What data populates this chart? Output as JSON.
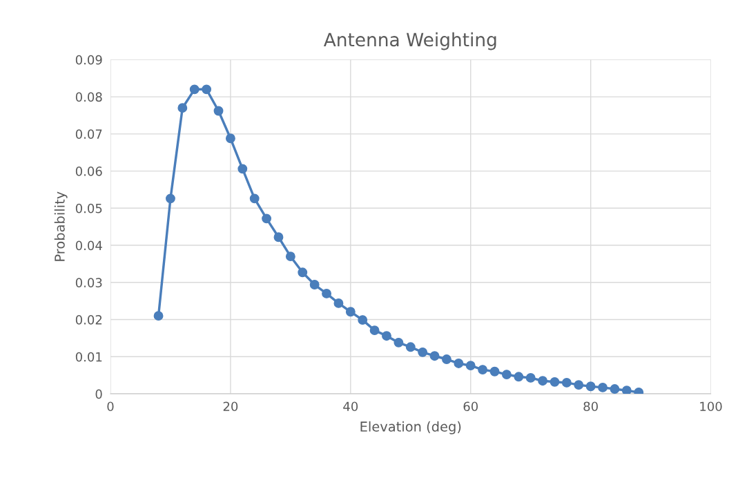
{
  "chart_data": {
    "type": "line",
    "title": "Antenna Weighting",
    "xlabel": "Elevation (deg)",
    "ylabel": "Probability",
    "x": [
      8,
      10,
      12,
      14,
      16,
      18,
      20,
      22,
      24,
      26,
      28,
      30,
      32,
      34,
      36,
      38,
      40,
      42,
      44,
      46,
      48,
      50,
      52,
      54,
      56,
      58,
      60,
      62,
      64,
      66,
      68,
      70,
      72,
      74,
      76,
      78,
      80,
      82,
      84,
      86,
      88
    ],
    "series": [
      {
        "color": "#4a7ebb",
        "values": [
          0.021,
          0.0526,
          0.077,
          0.082,
          0.082,
          0.0762,
          0.0688,
          0.0606,
          0.0526,
          0.0472,
          0.0422,
          0.037,
          0.0327,
          0.0294,
          0.027,
          0.0244,
          0.0221,
          0.0199,
          0.0171,
          0.0156,
          0.0138,
          0.0126,
          0.0112,
          0.0102,
          0.0093,
          0.0082,
          0.0076,
          0.0065,
          0.006,
          0.0052,
          0.0046,
          0.0043,
          0.0035,
          0.0032,
          0.003,
          0.0024,
          0.002,
          0.0017,
          0.0013,
          0.0009,
          0.0004
        ]
      }
    ],
    "xlim": [
      0,
      100
    ],
    "xticks": [
      0,
      20,
      40,
      60,
      80,
      100
    ],
    "ylim": [
      0,
      0.09
    ],
    "yticks": [
      {
        "value": 0,
        "label": "0"
      },
      0.01,
      0.02,
      0.03,
      0.04,
      0.05,
      0.06,
      0.07,
      0.08,
      0.09
    ],
    "grid": true,
    "marker": "circle",
    "line_style": "solid"
  }
}
